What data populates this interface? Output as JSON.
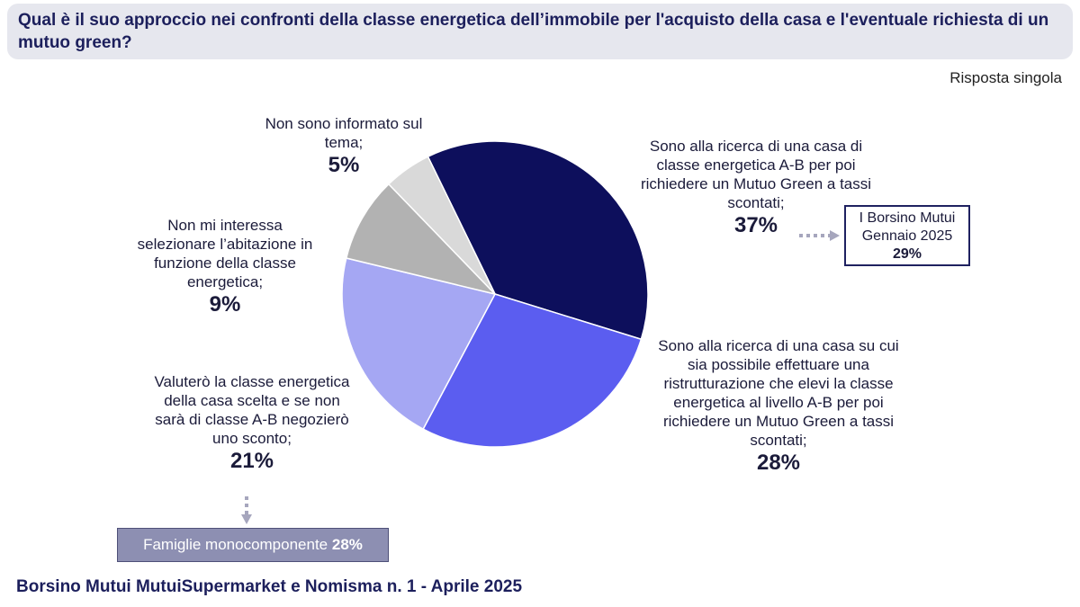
{
  "question": "Qual è il suo approccio nei confronti della classe energetica dell’immobile per l'acquisto della casa e l'eventuale richiesta di un mutuo green?",
  "response_type": "Risposta singola",
  "chart_data": {
    "type": "pie",
    "start_angle_deg": 334,
    "slices": [
      {
        "label": "Sono alla ricerca di una casa di classe energetica A-B per poi richiedere un Mutuo Green a tassi scontati;",
        "value": 37,
        "value_label": "37%",
        "color": "#0d0f5c"
      },
      {
        "label": "Sono alla ricerca di una casa su cui sia possibile effettuare una ristrutturazione che elevi la classe energetica al livello A-B per poi richiedere un Mutuo Green a tassi scontati;",
        "value": 28,
        "value_label": "28%",
        "color": "#5b5df0"
      },
      {
        "label": "Valuterò la classe energetica della casa scelta e se non sarà di classe A-B negozierò uno sconto;",
        "value": 21,
        "value_label": "21%",
        "color": "#a5a7f3"
      },
      {
        "label": "Non mi interessa selezionare l’abitazione in funzione della classe energetica;",
        "value": 9,
        "value_label": "9%",
        "color": "#b2b2b2"
      },
      {
        "label": "Non sono informato sul tema;",
        "value": 5,
        "value_label": "5%",
        "color": "#d9d9d9"
      }
    ]
  },
  "labels": {
    "informato": {
      "text": "Non sono informato sul tema;",
      "pct": "5%"
    },
    "interessa": {
      "text": "Non mi interessa selezionare l’abitazione in funzione della classe energetica;",
      "pct": "9%"
    },
    "valutero": {
      "text": "Valuterò la classe energetica della casa scelta e se non sarà di classe A-B negozierò uno sconto;",
      "pct": "21%"
    },
    "ricerca_ab": {
      "text": "Sono alla ricerca di una casa di classe energetica A-B per poi richiedere un Mutuo Green a tassi scontati;",
      "pct": "37%"
    },
    "ristrutturazione": {
      "text": "Sono alla ricerca di una casa su cui sia possibile effettuare una ristrutturazione che elevi la classe energetica al livello A-B  per poi richiedere un Mutuo Green a tassi scontati;",
      "pct": "28%"
    }
  },
  "comparison": {
    "line1": "I Borsino Mutui",
    "line2": "Gennaio 2025",
    "value": "29%"
  },
  "single_households": {
    "label": "Famiglie monocomponente",
    "value": "28%"
  },
  "footer": "Borsino Mutui MutuiSupermarket e Nomisma n. 1 - Aprile 2025",
  "colors": {
    "title": "#1c1f5c",
    "arrow": "#a6a6bd"
  }
}
